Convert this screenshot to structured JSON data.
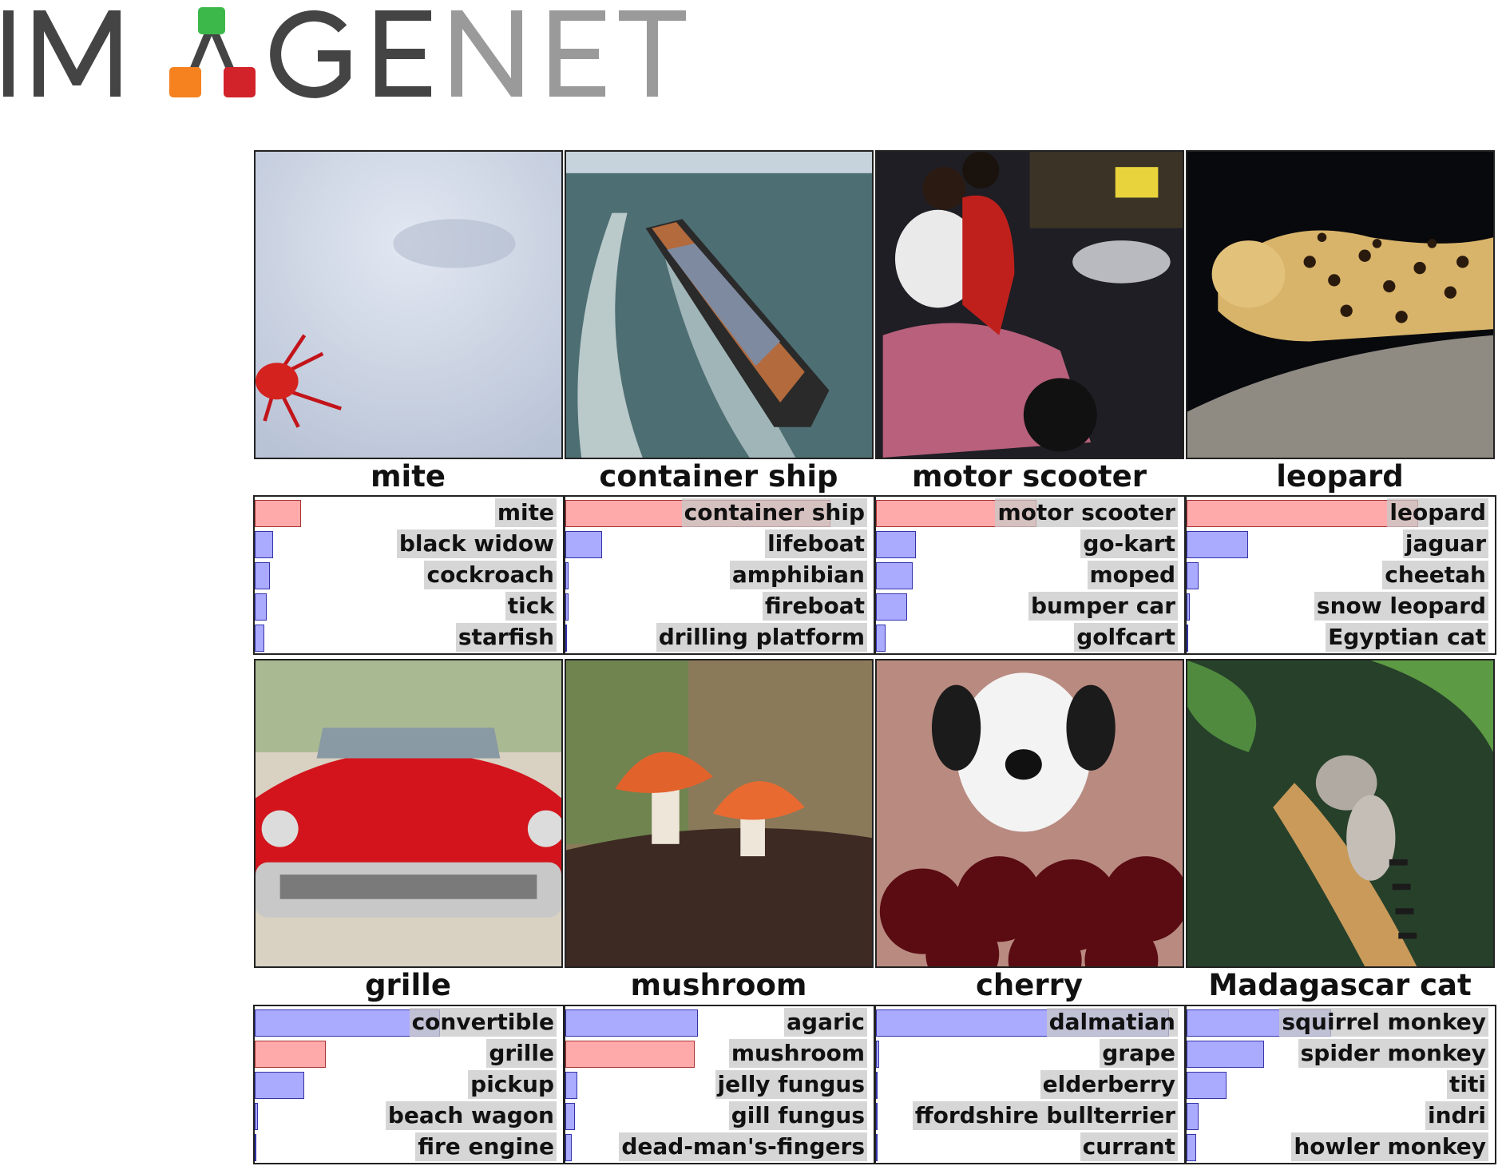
{
  "brand": {
    "name": "IMAGENET",
    "colors": {
      "dark": "#444444",
      "light": "#9a9a9a",
      "green": "#3cb84a",
      "orange": "#f5821f",
      "red": "#d2232a"
    }
  },
  "legend_colors": {
    "true_label": "#ffaaaa",
    "other_prediction": "#aaaaff"
  },
  "cells": [
    {
      "image": "red mite on a white surface",
      "label": "mite",
      "predictions": [
        {
          "name": "mite",
          "p": 0.15,
          "true": true
        },
        {
          "name": "black widow",
          "p": 0.06
        },
        {
          "name": "cockroach",
          "p": 0.05
        },
        {
          "name": "tick",
          "p": 0.04
        },
        {
          "name": "starfish",
          "p": 0.03
        }
      ]
    },
    {
      "image": "container ship at sea",
      "label": "container ship",
      "predictions": [
        {
          "name": "container ship",
          "p": 0.86,
          "true": true
        },
        {
          "name": "lifeboat",
          "p": 0.12
        },
        {
          "name": "amphibian",
          "p": 0.01
        },
        {
          "name": "fireboat",
          "p": 0.01
        },
        {
          "name": "drilling platform",
          "p": 0.0
        }
      ]
    },
    {
      "image": "two people riding a motor scooter at night",
      "label": "motor scooter",
      "predictions": [
        {
          "name": "motor scooter",
          "p": 0.52,
          "true": true
        },
        {
          "name": "go-kart",
          "p": 0.13
        },
        {
          "name": "moped",
          "p": 0.12
        },
        {
          "name": "bumper car",
          "p": 0.1
        },
        {
          "name": "golfcart",
          "p": 0.03
        }
      ]
    },
    {
      "image": "leopard on a tree branch",
      "label": "leopard",
      "predictions": [
        {
          "name": "leopard",
          "p": 0.75,
          "true": true
        },
        {
          "name": "jaguar",
          "p": 0.2
        },
        {
          "name": "cheetah",
          "p": 0.04
        },
        {
          "name": "snow leopard",
          "p": 0.01
        },
        {
          "name": "Egyptian cat",
          "p": 0.0
        }
      ]
    },
    {
      "image": "red vintage convertible car",
      "label": "grille",
      "predictions": [
        {
          "name": "convertible",
          "p": 0.6
        },
        {
          "name": "grille",
          "p": 0.23,
          "true": true
        },
        {
          "name": "pickup",
          "p": 0.16
        },
        {
          "name": "beach wagon",
          "p": 0.01
        },
        {
          "name": "fire engine",
          "p": 0.0
        }
      ]
    },
    {
      "image": "two orange mushrooms",
      "label": "mushroom",
      "predictions": [
        {
          "name": "agaric",
          "p": 0.43
        },
        {
          "name": "mushroom",
          "p": 0.42,
          "true": true
        },
        {
          "name": "jelly fungus",
          "p": 0.04
        },
        {
          "name": "gill fungus",
          "p": 0.03
        },
        {
          "name": "dead-man's-fingers",
          "p": 0.02
        }
      ]
    },
    {
      "image": "dalmatian dog behind cherries",
      "label": "cherry",
      "predictions": [
        {
          "name": "dalmatian",
          "p": 0.95
        },
        {
          "name": "grape",
          "p": 0.01
        },
        {
          "name": "elderberry",
          "p": 0.0
        },
        {
          "name": "ffordshire bullterrier",
          "p": 0.0
        },
        {
          "name": "currant",
          "p": 0.0
        }
      ]
    },
    {
      "image": "ring-tailed lemur in a tree",
      "label": "Madagascar cat",
      "predictions": [
        {
          "name": "squirrel monkey",
          "p": 0.47
        },
        {
          "name": "spider monkey",
          "p": 0.25
        },
        {
          "name": "titi",
          "p": 0.13
        },
        {
          "name": "indri",
          "p": 0.04
        },
        {
          "name": "howler monkey",
          "p": 0.03
        }
      ]
    }
  ]
}
